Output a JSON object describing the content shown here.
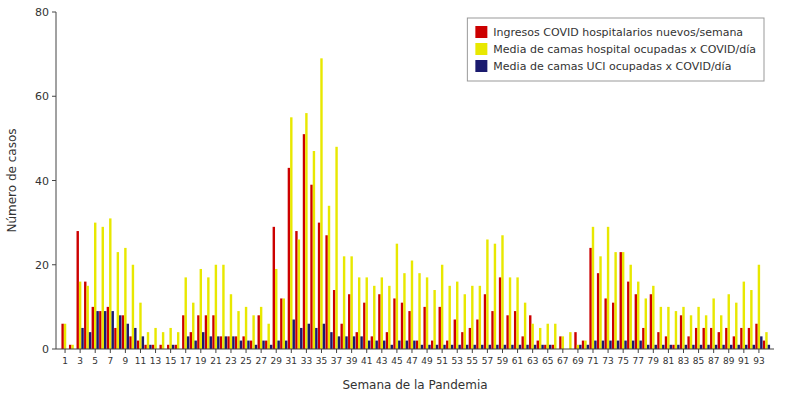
{
  "chart_data": {
    "type": "bar",
    "xlabel": "Semana de la Pandemia",
    "ylabel": "Número de casos",
    "x": [
      1,
      2,
      3,
      4,
      5,
      6,
      7,
      8,
      9,
      10,
      11,
      12,
      13,
      14,
      15,
      16,
      17,
      18,
      19,
      20,
      21,
      22,
      23,
      24,
      25,
      26,
      27,
      28,
      29,
      30,
      31,
      32,
      33,
      34,
      35,
      36,
      37,
      38,
      39,
      40,
      41,
      42,
      43,
      44,
      45,
      46,
      47,
      48,
      49,
      50,
      51,
      52,
      53,
      54,
      55,
      56,
      57,
      58,
      59,
      60,
      61,
      62,
      63,
      64,
      65,
      66,
      67,
      68,
      69,
      70,
      71,
      72,
      73,
      74,
      75,
      76,
      77,
      78,
      79,
      80,
      81,
      82,
      83,
      84,
      85,
      86,
      87,
      88,
      89,
      90,
      91,
      92,
      93,
      94
    ],
    "series": [
      {
        "name": "Ingresos COVID hospitalarios nuevos/semana",
        "color": "#cc0000",
        "values": [
          6,
          1,
          28,
          16,
          10,
          9,
          10,
          5,
          8,
          3,
          2,
          1,
          1,
          1,
          1,
          1,
          8,
          4,
          8,
          8,
          8,
          3,
          3,
          3,
          3,
          2,
          8,
          2,
          29,
          12,
          43,
          28,
          51,
          39,
          30,
          27,
          14,
          6,
          13,
          4,
          11,
          3,
          13,
          4,
          12,
          11,
          9,
          2,
          10,
          2,
          10,
          2,
          7,
          4,
          5,
          7,
          13,
          9,
          17,
          8,
          9,
          3,
          8,
          2,
          1,
          1,
          3,
          0,
          4,
          2,
          24,
          18,
          12,
          11,
          23,
          16,
          13,
          5,
          13,
          4,
          3,
          1,
          8,
          3,
          5,
          5,
          5,
          4,
          5,
          3,
          5,
          5,
          6,
          2
        ]
      },
      {
        "name": "Media de camas hospital ocupadas x COVID/día",
        "color": "#e8e800",
        "values": [
          6,
          1,
          16,
          15,
          30,
          29,
          31,
          23,
          24,
          20,
          11,
          4,
          5,
          4,
          5,
          4,
          17,
          11,
          19,
          17,
          20,
          20,
          13,
          9,
          10,
          8,
          10,
          6,
          19,
          12,
          55,
          26,
          56,
          47,
          69,
          34,
          48,
          22,
          22,
          17,
          17,
          15,
          17,
          15,
          25,
          18,
          21,
          18,
          17,
          14,
          20,
          15,
          16,
          13,
          15,
          15,
          26,
          25,
          27,
          17,
          17,
          11,
          6,
          5,
          6,
          6,
          3,
          4,
          1,
          2,
          29,
          22,
          29,
          23,
          23,
          20,
          16,
          12,
          15,
          10,
          10,
          9,
          10,
          8,
          10,
          8,
          12,
          8,
          13,
          11,
          16,
          14,
          20,
          4
        ]
      },
      {
        "name": "Media de camas UCI ocupadas x COVID/día",
        "color": "#1a1a6e",
        "values": [
          0,
          0,
          5,
          4,
          9,
          9,
          9,
          8,
          6,
          5,
          3,
          1,
          0,
          0,
          1,
          0,
          3,
          2,
          4,
          3,
          3,
          3,
          3,
          2,
          2,
          1,
          2,
          1,
          2,
          2,
          7,
          5,
          6,
          5,
          6,
          4,
          3,
          3,
          3,
          3,
          2,
          2,
          2,
          1,
          2,
          2,
          2,
          1,
          1,
          1,
          1,
          1,
          1,
          1,
          1,
          1,
          1,
          1,
          1,
          1,
          1,
          1,
          1,
          1,
          1,
          0,
          0,
          0,
          1,
          1,
          2,
          2,
          2,
          2,
          2,
          2,
          2,
          1,
          1,
          1,
          1,
          1,
          1,
          1,
          1,
          1,
          1,
          1,
          1,
          1,
          1,
          1,
          3,
          1
        ]
      }
    ],
    "xlim": [
      -0.2,
      95
    ],
    "xticks": [
      1,
      3,
      5,
      7,
      9,
      11,
      13,
      15,
      17,
      19,
      21,
      23,
      25,
      27,
      29,
      31,
      33,
      35,
      37,
      39,
      41,
      43,
      45,
      47,
      49,
      51,
      53,
      55,
      57,
      59,
      61,
      63,
      65,
      67,
      69,
      71,
      73,
      75,
      77,
      79,
      81,
      83,
      85,
      87,
      89,
      91,
      93
    ],
    "ylim": [
      0,
      80
    ],
    "yticks": [
      0,
      20,
      40,
      60,
      80
    ],
    "grid": false,
    "legend": "upper-right"
  }
}
